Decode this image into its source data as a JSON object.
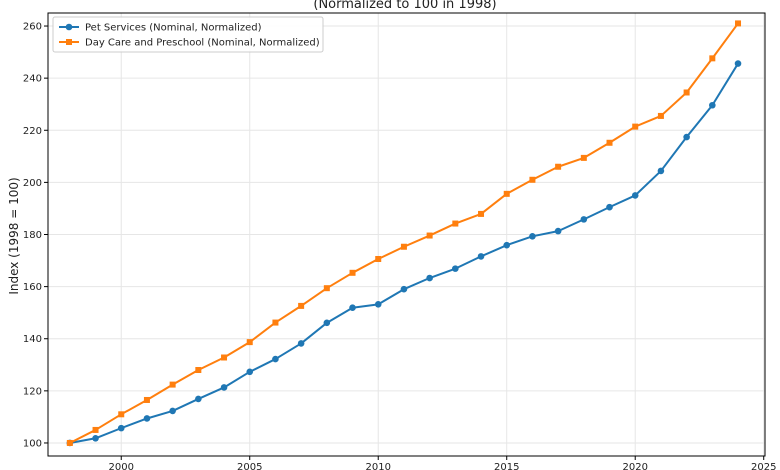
{
  "chart_data": {
    "type": "line",
    "title": "(Normalized to 100 in 1998)",
    "xlabel": "",
    "ylabel": "Index (1998 = 100)",
    "xlim": [
      1997.15,
      2025.05
    ],
    "ylim": [
      95,
      265
    ],
    "x_ticks": [
      2000,
      2005,
      2010,
      2015,
      2020,
      2025
    ],
    "y_ticks": [
      100,
      120,
      140,
      160,
      180,
      200,
      220,
      240,
      260
    ],
    "grid": true,
    "legend_position": "top-left",
    "x": [
      1998,
      1999,
      2000,
      2001,
      2002,
      2003,
      2004,
      2005,
      2006,
      2007,
      2008,
      2009,
      2010,
      2011,
      2012,
      2013,
      2014,
      2015,
      2016,
      2017,
      2018,
      2019,
      2020,
      2021,
      2022,
      2023,
      2024
    ],
    "series": [
      {
        "name": "Pet Services (Nominal, Normalized)",
        "color": "#1f77b4",
        "marker": "circle",
        "values": [
          100.0,
          101.8,
          105.7,
          109.4,
          112.3,
          116.9,
          121.3,
          127.3,
          132.2,
          138.2,
          146.1,
          151.9,
          153.2,
          159.0,
          163.3,
          166.9,
          171.6,
          175.9,
          179.3,
          181.3,
          185.8,
          190.5,
          195.0,
          204.4,
          217.4,
          229.6,
          245.6
        ]
      },
      {
        "name": "Day Care and Preschool (Nominal, Normalized)",
        "color": "#ff7f0e",
        "marker": "square",
        "values": [
          100.0,
          105.0,
          111.0,
          116.5,
          122.4,
          128.0,
          132.8,
          138.7,
          146.2,
          152.6,
          159.4,
          165.3,
          170.6,
          175.3,
          179.6,
          184.2,
          187.9,
          195.6,
          201.0,
          206.0,
          209.4,
          215.2,
          221.4,
          225.5,
          234.5,
          247.6,
          261.0
        ]
      }
    ]
  }
}
